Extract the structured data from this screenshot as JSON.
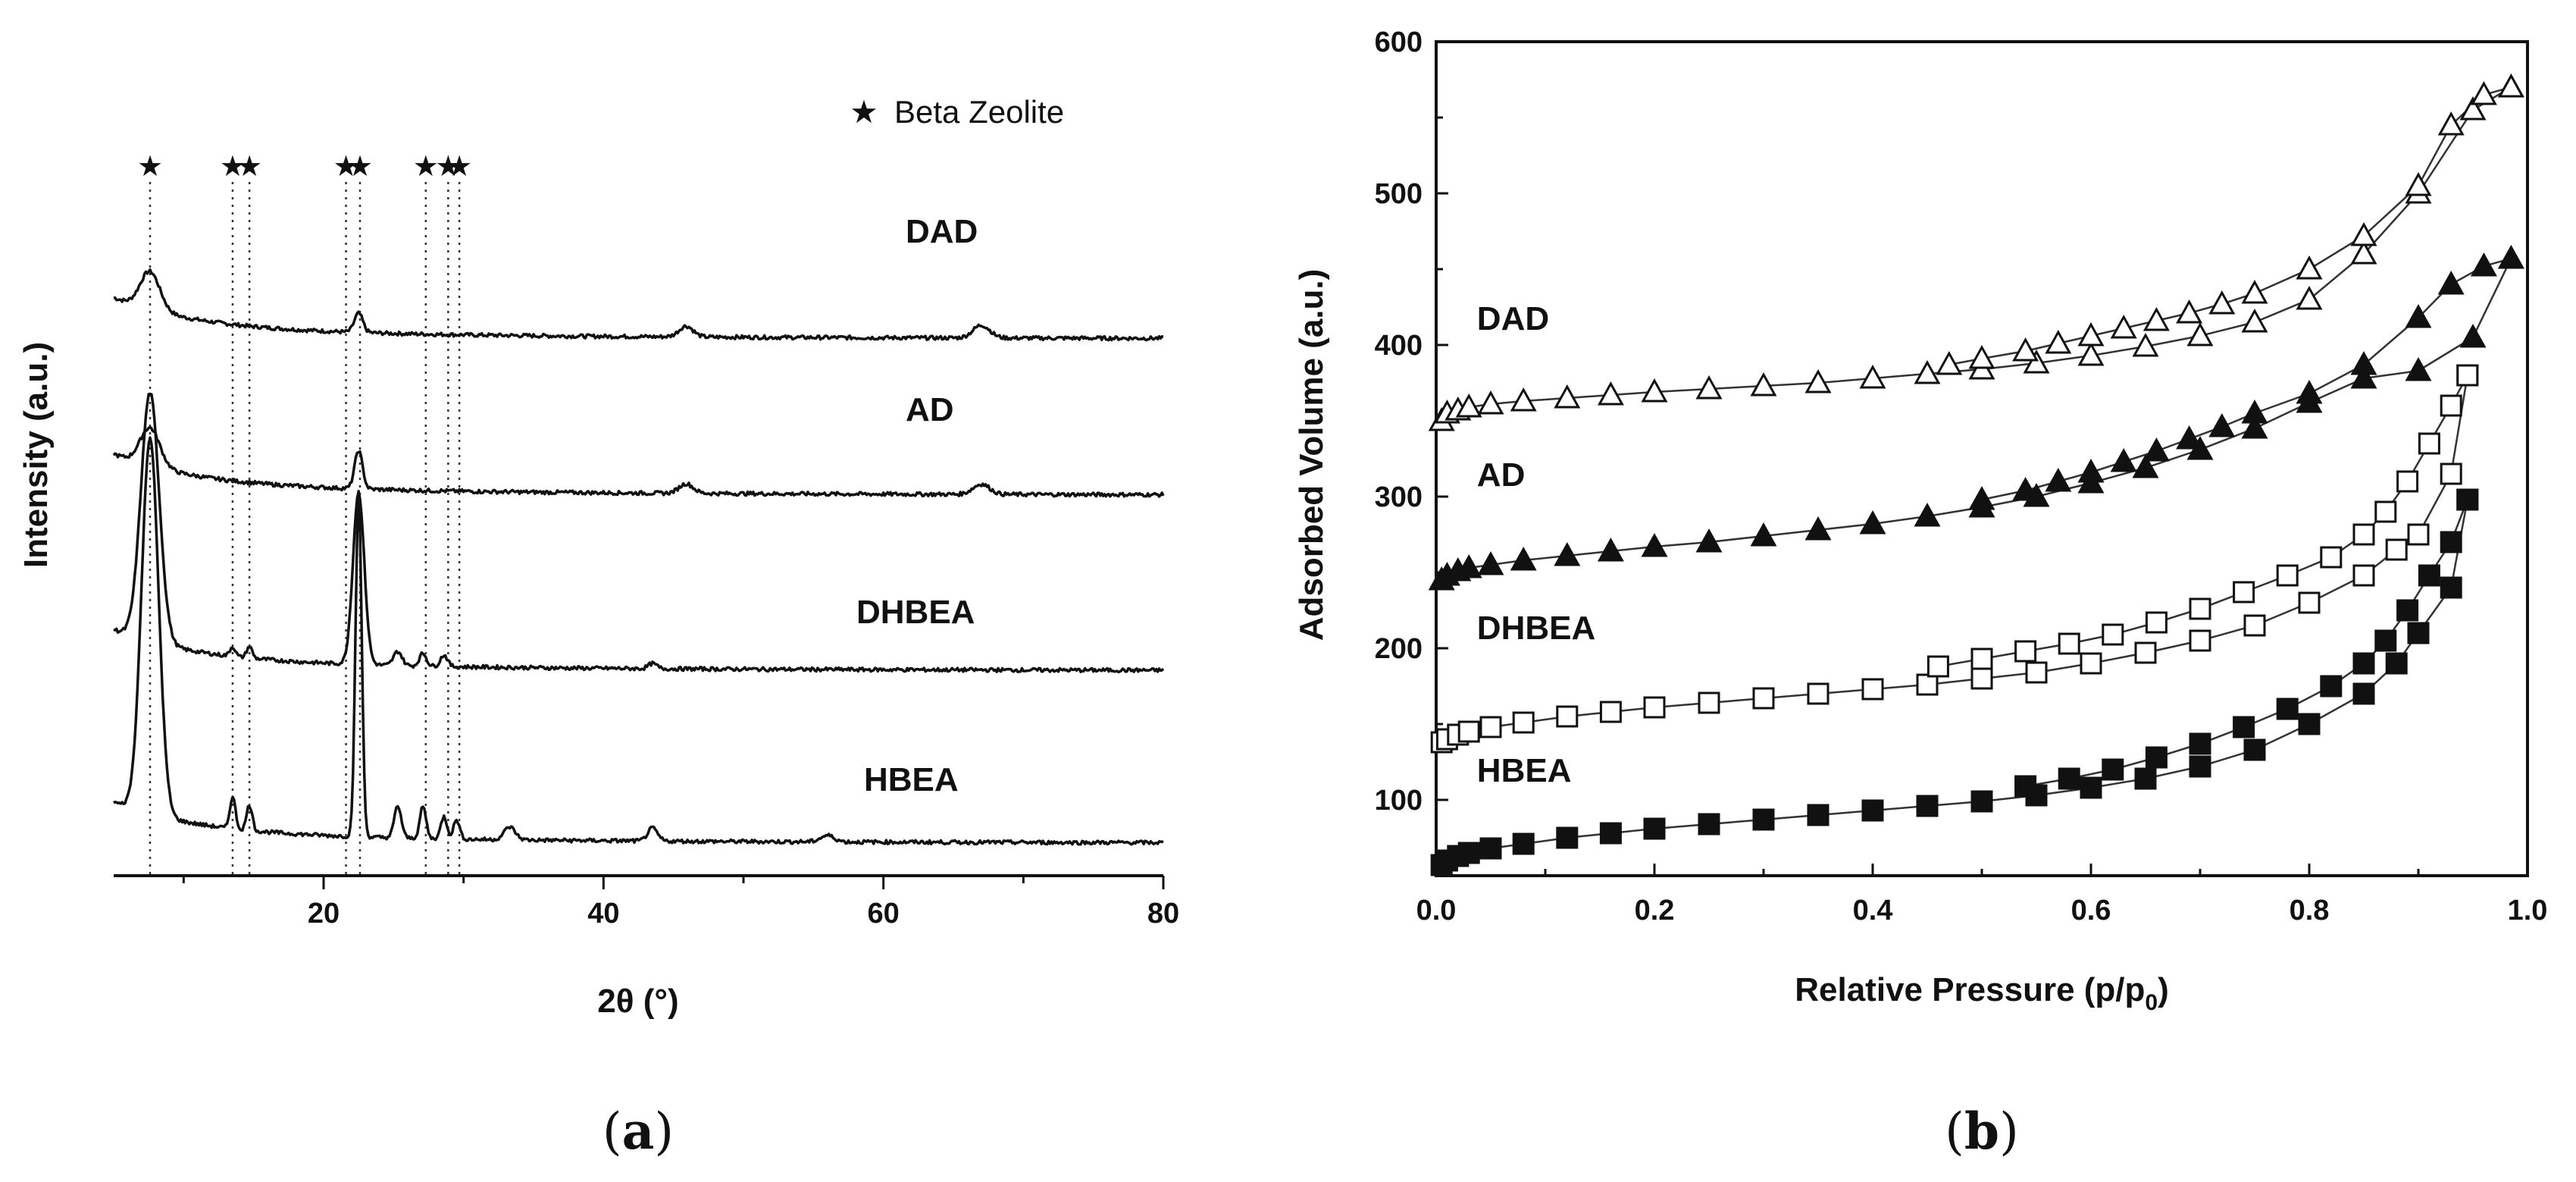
{
  "chart_data": [
    {
      "type": "line",
      "panel": "a",
      "panel_label_parts": [
        "(",
        "a",
        ")"
      ],
      "title": "",
      "xlabel": "2θ (°)",
      "ylabel": "Intensity (a.u.)",
      "xlim": [
        5,
        80
      ],
      "xticks": [
        20,
        40,
        60,
        80
      ],
      "y_ticks_shown": false,
      "legend": {
        "marker": "★",
        "label": "Beta Zeolite",
        "placement": "top-right"
      },
      "reference_peaks_2theta": [
        7.6,
        13.5,
        14.7,
        21.6,
        22.6,
        27.3,
        28.9,
        29.7
      ],
      "series": [
        {
          "name": "DAD",
          "baseline": 0.79,
          "peaks": [
            [
              7.6,
              0.06,
              0.7
            ],
            [
              22.5,
              0.03,
              0.3
            ],
            [
              45.9,
              0.017,
              0.5
            ],
            [
              67.0,
              0.02,
              0.6
            ]
          ]
        },
        {
          "name": "AD",
          "baseline": 0.545,
          "peaks": [
            [
              7.6,
              0.06,
              0.7
            ],
            [
              22.5,
              0.06,
              0.28
            ],
            [
              45.9,
              0.015,
              0.5
            ],
            [
              67.0,
              0.016,
              0.6
            ]
          ]
        },
        {
          "name": "DHBEA",
          "baseline": 0.27,
          "peaks": [
            [
              7.6,
              0.39,
              0.65
            ],
            [
              22.5,
              0.27,
              0.4
            ],
            [
              13.5,
              0.015,
              0.2
            ],
            [
              14.7,
              0.018,
              0.2
            ],
            [
              25.3,
              0.022,
              0.3
            ],
            [
              27.1,
              0.02,
              0.25
            ],
            [
              28.6,
              0.018,
              0.25
            ],
            [
              43.5,
              0.008,
              0.3
            ]
          ]
        },
        {
          "name": "HBEA",
          "baseline": 0.0,
          "peaks": [
            [
              7.6,
              0.59,
              0.6
            ],
            [
              22.5,
              0.53,
              0.22
            ],
            [
              13.5,
              0.05,
              0.2
            ],
            [
              14.7,
              0.04,
              0.2
            ],
            [
              25.3,
              0.05,
              0.25
            ],
            [
              27.1,
              0.05,
              0.22
            ],
            [
              28.6,
              0.035,
              0.22
            ],
            [
              29.5,
              0.03,
              0.22
            ],
            [
              33.3,
              0.02,
              0.4
            ],
            [
              43.5,
              0.02,
              0.35
            ],
            [
              56.0,
              0.01,
              0.5
            ]
          ]
        }
      ]
    },
    {
      "type": "scatter",
      "panel": "b",
      "panel_label_parts": [
        "(",
        "b",
        ")"
      ],
      "title": "",
      "xlabel_main": "Relative Pressure (p/p",
      "xlabel_sub": "0",
      "xlabel_close": ")",
      "ylabel": "Adsorbed Volume (a.u.)",
      "xlim": [
        0,
        1.0
      ],
      "ylim": [
        50,
        600
      ],
      "xticks": [
        "0.0",
        "0.2",
        "0.4",
        "0.6",
        "0.8",
        "1.0"
      ],
      "yticks": [
        "100",
        "200",
        "300",
        "400",
        "500",
        "600"
      ],
      "series": [
        {
          "name": "DAD",
          "marker": "open-triangle",
          "label_at": [
            0.02,
            410
          ],
          "adsorption": [
            [
              0.005,
              350
            ],
            [
              0.01,
              355
            ],
            [
              0.02,
              357
            ],
            [
              0.03,
              359
            ],
            [
              0.05,
              361
            ],
            [
              0.08,
              363
            ],
            [
              0.12,
              365
            ],
            [
              0.16,
              367
            ],
            [
              0.2,
              369
            ],
            [
              0.25,
              371
            ],
            [
              0.3,
              373
            ],
            [
              0.35,
              375
            ],
            [
              0.4,
              378
            ],
            [
              0.45,
              381
            ],
            [
              0.5,
              384
            ],
            [
              0.55,
              388
            ],
            [
              0.6,
              393
            ],
            [
              0.65,
              399
            ],
            [
              0.7,
              406
            ],
            [
              0.75,
              415
            ],
            [
              0.8,
              430
            ],
            [
              0.85,
              460
            ],
            [
              0.9,
              500
            ],
            [
              0.95,
              555
            ],
            [
              0.985,
              570
            ]
          ],
          "desorption": [
            [
              0.985,
              570
            ],
            [
              0.96,
              565
            ],
            [
              0.93,
              545
            ],
            [
              0.9,
              505
            ],
            [
              0.85,
              472
            ],
            [
              0.8,
              450
            ],
            [
              0.75,
              434
            ],
            [
              0.72,
              427
            ],
            [
              0.69,
              421
            ],
            [
              0.66,
              416
            ],
            [
              0.63,
              411
            ],
            [
              0.6,
              406
            ],
            [
              0.57,
              401
            ],
            [
              0.54,
              396
            ],
            [
              0.5,
              391
            ],
            [
              0.47,
              387
            ]
          ]
        },
        {
          "name": "AD",
          "marker": "filled-triangle",
          "label_at": [
            0.02,
            307
          ],
          "adsorption": [
            [
              0.005,
              245
            ],
            [
              0.01,
              248
            ],
            [
              0.02,
              251
            ],
            [
              0.03,
              253
            ],
            [
              0.05,
              255
            ],
            [
              0.08,
              258
            ],
            [
              0.12,
              261
            ],
            [
              0.16,
              264
            ],
            [
              0.2,
              267
            ],
            [
              0.25,
              270
            ],
            [
              0.3,
              274
            ],
            [
              0.35,
              278
            ],
            [
              0.4,
              282
            ],
            [
              0.45,
              287
            ],
            [
              0.5,
              293
            ],
            [
              0.55,
              300
            ],
            [
              0.6,
              309
            ],
            [
              0.65,
              319
            ],
            [
              0.7,
              331
            ],
            [
              0.75,
              345
            ],
            [
              0.8,
              362
            ],
            [
              0.85,
              378
            ],
            [
              0.9,
              383
            ],
            [
              0.95,
              405
            ],
            [
              0.985,
              457
            ]
          ],
          "desorption": [
            [
              0.985,
              457
            ],
            [
              0.96,
              452
            ],
            [
              0.93,
              440
            ],
            [
              0.9,
              418
            ],
            [
              0.85,
              387
            ],
            [
              0.8,
              368
            ],
            [
              0.75,
              355
            ],
            [
              0.72,
              346
            ],
            [
              0.69,
              338
            ],
            [
              0.66,
              330
            ],
            [
              0.63,
              323
            ],
            [
              0.6,
              316
            ],
            [
              0.57,
              310
            ],
            [
              0.54,
              304
            ],
            [
              0.5,
              298
            ]
          ]
        },
        {
          "name": "DHBEA",
          "marker": "open-square",
          "label_at": [
            0.02,
            206
          ],
          "adsorption": [
            [
              0.005,
              138
            ],
            [
              0.01,
              140
            ],
            [
              0.02,
              143
            ],
            [
              0.03,
              145
            ],
            [
              0.05,
              148
            ],
            [
              0.08,
              151
            ],
            [
              0.12,
              155
            ],
            [
              0.16,
              158
            ],
            [
              0.2,
              161
            ],
            [
              0.25,
              164
            ],
            [
              0.3,
              167
            ],
            [
              0.35,
              170
            ],
            [
              0.4,
              173
            ],
            [
              0.45,
              176
            ],
            [
              0.5,
              180
            ],
            [
              0.55,
              184
            ],
            [
              0.6,
              190
            ],
            [
              0.65,
              197
            ],
            [
              0.7,
              205
            ],
            [
              0.75,
              215
            ],
            [
              0.8,
              230
            ],
            [
              0.85,
              248
            ],
            [
              0.88,
              265
            ],
            [
              0.9,
              275
            ],
            [
              0.93,
              315
            ],
            [
              0.945,
              380
            ]
          ],
          "desorption": [
            [
              0.945,
              380
            ],
            [
              0.93,
              360
            ],
            [
              0.91,
              335
            ],
            [
              0.89,
              310
            ],
            [
              0.87,
              290
            ],
            [
              0.85,
              275
            ],
            [
              0.82,
              260
            ],
            [
              0.78,
              248
            ],
            [
              0.74,
              237
            ],
            [
              0.7,
              226
            ],
            [
              0.66,
              217
            ],
            [
              0.62,
              209
            ],
            [
              0.58,
              203
            ],
            [
              0.54,
              198
            ],
            [
              0.5,
              193
            ],
            [
              0.46,
              188
            ]
          ]
        },
        {
          "name": "HBEA",
          "marker": "filled-square",
          "label_at": [
            0.02,
            112
          ],
          "adsorption": [
            [
              0.005,
              57
            ],
            [
              0.01,
              60
            ],
            [
              0.02,
              63
            ],
            [
              0.03,
              65
            ],
            [
              0.05,
              68
            ],
            [
              0.08,
              71
            ],
            [
              0.12,
              75
            ],
            [
              0.16,
              78
            ],
            [
              0.2,
              81
            ],
            [
              0.25,
              84
            ],
            [
              0.3,
              87
            ],
            [
              0.35,
              90
            ],
            [
              0.4,
              93
            ],
            [
              0.45,
              96
            ],
            [
              0.5,
              99
            ],
            [
              0.55,
              103
            ],
            [
              0.6,
              108
            ],
            [
              0.65,
              114
            ],
            [
              0.7,
              122
            ],
            [
              0.75,
              133
            ],
            [
              0.8,
              150
            ],
            [
              0.85,
              170
            ],
            [
              0.88,
              190
            ],
            [
              0.9,
              210
            ],
            [
              0.93,
              240
            ],
            [
              0.945,
              298
            ]
          ],
          "desorption": [
            [
              0.945,
              298
            ],
            [
              0.93,
              270
            ],
            [
              0.91,
              248
            ],
            [
              0.89,
              225
            ],
            [
              0.87,
              205
            ],
            [
              0.85,
              190
            ],
            [
              0.82,
              175
            ],
            [
              0.78,
              160
            ],
            [
              0.74,
              148
            ],
            [
              0.7,
              137
            ],
            [
              0.66,
              128
            ],
            [
              0.62,
              120
            ],
            [
              0.58,
              114
            ],
            [
              0.54,
              109
            ]
          ]
        }
      ]
    }
  ]
}
